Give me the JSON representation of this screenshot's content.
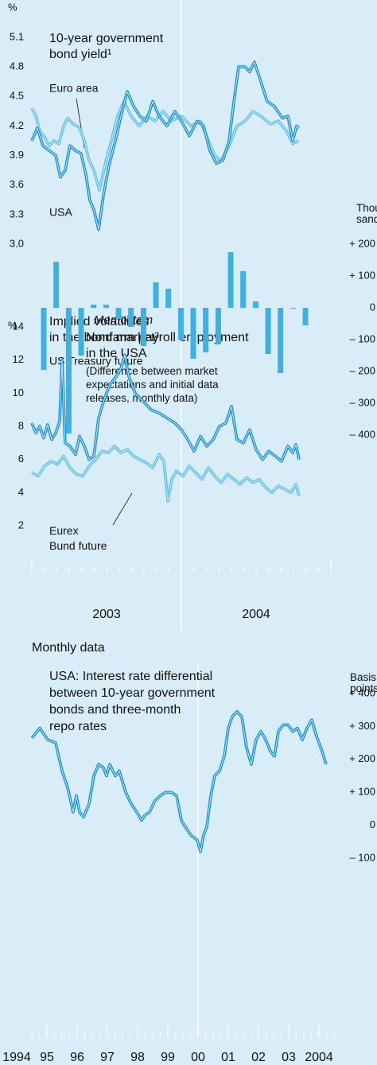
{
  "chart_data": [
    {
      "type": "line",
      "y_unit": "%",
      "title": "10-year government\nbond yield¹",
      "xlim": [
        2003,
        2005
      ],
      "ylim": [
        3,
        5.1
      ],
      "xgrid": [
        2004
      ],
      "yticks": [
        {
          "value": 3,
          "label": "3.0"
        },
        3.3,
        3.6,
        3.9,
        4.2,
        4.5,
        4.8,
        5.1
      ],
      "series": [
        {
          "name": "Euro area",
          "color": "#5fbde8",
          "x": [
            2003.0,
            2003.027,
            2003.053,
            2003.08,
            2003.117,
            2003.149,
            2003.181,
            2003.213,
            2003.239,
            2003.277,
            2003.319,
            2003.351,
            2003.383,
            2003.415,
            2003.452,
            2003.489,
            2003.532,
            2003.574,
            2003.617,
            2003.665,
            2003.718,
            2003.771,
            2003.824,
            2003.878,
            2003.931,
            2004.0,
            2004.064,
            2004.128,
            2004.181,
            2004.223,
            2004.266,
            2004.319,
            2004.372,
            2004.426,
            2004.479,
            2004.532,
            2004.596,
            2004.649,
            2004.702,
            2004.745,
            2004.782
          ],
          "values": [
            4.38,
            4.3,
            4.15,
            4.1,
            4.0,
            4.05,
            4.02,
            4.2,
            4.28,
            4.22,
            4.18,
            4.05,
            3.85,
            3.75,
            3.55,
            3.8,
            4.05,
            4.3,
            4.45,
            4.3,
            4.2,
            4.3,
            4.25,
            4.35,
            4.25,
            4.3,
            4.2,
            4.25,
            4.05,
            3.9,
            3.85,
            4.0,
            4.2,
            4.25,
            4.35,
            4.3,
            4.22,
            4.25,
            4.15,
            4.02,
            4.05
          ]
        },
        {
          "name": "USA",
          "color": "#1a8fd0",
          "x": [
            2003.0,
            2003.037,
            2003.074,
            2003.117,
            2003.16,
            2003.191,
            2003.223,
            2003.255,
            2003.293,
            2003.33,
            2003.362,
            2003.388,
            2003.415,
            2003.447,
            2003.479,
            2003.516,
            2003.559,
            2003.596,
            2003.638,
            2003.681,
            2003.723,
            2003.766,
            2003.809,
            2003.851,
            2003.904,
            2003.957,
            2004.0,
            2004.053,
            2004.106,
            2004.149,
            2004.191,
            2004.234,
            2004.277,
            2004.319,
            2004.356,
            2004.383,
            2004.426,
            2004.457,
            2004.489,
            2004.532,
            2004.574,
            2004.622,
            2004.676,
            2004.713,
            2004.745,
            2004.771,
            2004.787
          ],
          "values": [
            4.05,
            4.18,
            4.0,
            3.95,
            3.9,
            3.68,
            3.75,
            4.0,
            3.95,
            3.92,
            3.7,
            3.45,
            3.35,
            3.15,
            3.5,
            3.8,
            4.05,
            4.3,
            4.55,
            4.4,
            4.3,
            4.25,
            4.45,
            4.3,
            4.2,
            4.35,
            4.25,
            4.1,
            4.25,
            4.2,
            3.95,
            3.82,
            3.85,
            4.05,
            4.5,
            4.8,
            4.8,
            4.75,
            4.85,
            4.65,
            4.45,
            4.4,
            4.28,
            4.3,
            4.05,
            4.2,
            4.18
          ]
        }
      ]
    },
    {
      "type": "bar",
      "y_unit": "Thou-\nsands",
      "color": "#3fb0e2",
      "annotations": [
        "Memo item",
        "Nonfarm payroll employment\nin the USA",
        "(Difference between market\nexpectations and initial data\nreleases, monthly data)"
      ],
      "xlim": [
        2003,
        2005
      ],
      "ylim": [
        -400,
        200
      ],
      "xgrid": [
        2004
      ],
      "yticks": [
        {
          "value": 200,
          "label": "+ 200"
        },
        {
          "value": 100,
          "label": "+ 100"
        },
        0,
        {
          "value": -100,
          "label": "– 100"
        },
        {
          "value": -200,
          "label": "– 200"
        },
        {
          "value": -300,
          "label": "– 300"
        },
        {
          "value": -400,
          "label": "– 400"
        }
      ],
      "x": [
        2003.08,
        2003.163,
        2003.247,
        2003.33,
        2003.413,
        2003.497,
        2003.58,
        2003.663,
        2003.747,
        2003.83,
        2003.913,
        2003.997,
        2004.08,
        2004.163,
        2004.247,
        2004.33,
        2004.413,
        2004.497,
        2004.58,
        2004.663,
        2004.747,
        2004.83
      ],
      "values": [
        -195,
        145,
        -395,
        -150,
        10,
        10,
        -35,
        -60,
        -120,
        80,
        60,
        -100,
        -160,
        -140,
        -115,
        175,
        115,
        20,
        -145,
        -205,
        -3,
        -55
      ]
    },
    {
      "type": "line",
      "y_unit": "%",
      "title": "Implied volatilities\nin the bond market²",
      "xlim": [
        2003,
        2005
      ],
      "ylim": [
        2,
        14
      ],
      "xgrid": [
        2004
      ],
      "yticks": [
        2,
        4,
        6,
        8,
        10,
        12,
        14
      ],
      "xticks": [
        {
          "value": 2003.5,
          "label": "2003"
        },
        {
          "value": 2004.5,
          "label": "2004"
        }
      ],
      "series": [
        {
          "name": "US Treasury future",
          "color": "#1a8fd0",
          "x": [
            2003.0,
            2003.027,
            2003.053,
            2003.08,
            2003.106,
            2003.133,
            2003.16,
            2003.186,
            2003.202,
            2003.223,
            2003.255,
            2003.293,
            2003.319,
            2003.351,
            2003.383,
            2003.415,
            2003.447,
            2003.479,
            2003.521,
            2003.564,
            2003.596,
            2003.622,
            2003.649,
            2003.691,
            2003.745,
            2003.798,
            2003.851,
            2003.904,
            2003.957,
            2004.0,
            2004.043,
            2004.085,
            2004.128,
            2004.17,
            2004.213,
            2004.255,
            2004.298,
            2004.335,
            2004.372,
            2004.415,
            2004.457,
            2004.5,
            2004.543,
            2004.585,
            2004.628,
            2004.67,
            2004.713,
            2004.745,
            2004.766,
            2004.787
          ],
          "values": [
            8.2,
            7.6,
            8.0,
            7.3,
            8.1,
            7.2,
            7.6,
            8.3,
            12.0,
            7.0,
            6.8,
            6.3,
            7.4,
            6.8,
            6.0,
            6.2,
            8.5,
            9.5,
            10.5,
            11.0,
            11.5,
            12.3,
            11.0,
            10.0,
            9.5,
            9.0,
            8.8,
            8.5,
            8.2,
            7.8,
            7.2,
            6.5,
            7.4,
            6.8,
            7.2,
            8.0,
            8.2,
            9.2,
            7.2,
            7.0,
            7.8,
            6.6,
            6.0,
            6.5,
            6.2,
            5.9,
            6.8,
            6.4,
            6.9,
            6.0
          ]
        },
        {
          "name": "Eurex\nBund future",
          "color": "#5fbde8",
          "x": [
            2003.0,
            2003.043,
            2003.085,
            2003.128,
            2003.17,
            2003.213,
            2003.255,
            2003.298,
            2003.34,
            2003.383,
            2003.426,
            2003.468,
            2003.511,
            2003.553,
            2003.596,
            2003.638,
            2003.681,
            2003.723,
            2003.766,
            2003.809,
            2003.851,
            2003.883,
            2003.91,
            2003.936,
            2003.968,
            2004.011,
            2004.053,
            2004.096,
            2004.138,
            2004.181,
            2004.223,
            2004.266,
            2004.309,
            2004.351,
            2004.394,
            2004.436,
            2004.479,
            2004.521,
            2004.564,
            2004.606,
            2004.649,
            2004.691,
            2004.734,
            2004.766,
            2004.787
          ],
          "values": [
            5.2,
            5.0,
            5.6,
            5.9,
            5.7,
            6.2,
            5.5,
            5.1,
            5.0,
            5.6,
            6.0,
            6.5,
            6.4,
            6.8,
            6.4,
            6.6,
            6.2,
            6.0,
            5.8,
            5.5,
            6.3,
            5.9,
            3.5,
            4.8,
            5.3,
            5.0,
            5.6,
            5.2,
            4.8,
            5.5,
            5.0,
            4.6,
            5.1,
            4.8,
            4.5,
            4.9,
            4.6,
            4.8,
            4.3,
            4.0,
            4.4,
            4.2,
            4.0,
            4.5,
            3.8
          ]
        }
      ]
    },
    {
      "type": "line",
      "subtitle": "Monthly data",
      "title": "USA: Interest rate differential\nbetween 10-year government\nbonds and three-month\nrepo rates",
      "y_unit": "Basis\npoints",
      "xlim": [
        1994.5,
        2004.5
      ],
      "ylim": [
        -100,
        400
      ],
      "xgrid": [
        2000
      ],
      "yticks": [
        {
          "value": 400,
          "label": "+ 400"
        },
        {
          "value": 300,
          "label": "+ 300"
        },
        {
          "value": 200,
          "label": "+ 200"
        },
        {
          "value": 100,
          "label": "+ 100"
        },
        0,
        {
          "value": -100,
          "label": "– 100"
        }
      ],
      "xticks": [
        1994,
        {
          "value": 1995,
          "label": "95"
        },
        {
          "value": 1996,
          "label": "96"
        },
        {
          "value": 1997,
          "label": "97"
        },
        {
          "value": 1998,
          "label": "98"
        },
        {
          "value": 1999,
          "label": "99"
        },
        {
          "value": 2000,
          "label": "00"
        },
        {
          "value": 2001,
          "label": "01"
        },
        {
          "value": 2002,
          "label": "02"
        },
        {
          "value": 2003,
          "label": "03"
        },
        2004
      ],
      "series": [
        {
          "color": "#1a8fd0",
          "x": [
            1994.5,
            1994.763,
            1995.026,
            1995.289,
            1995.5,
            1995.684,
            1995.868,
            1995.974,
            1996.079,
            1996.211,
            1996.395,
            1996.553,
            1996.711,
            1996.868,
            1996.974,
            1997.079,
            1997.263,
            1997.395,
            1997.605,
            1997.789,
            1997.974,
            1998.132,
            1998.237,
            1998.395,
            1998.579,
            1998.763,
            1998.921,
            1999.105,
            1999.289,
            1999.447,
            1999.579,
            1999.763,
            1999.974,
            2000.079,
            2000.184,
            2000.289,
            2000.421,
            2000.553,
            2000.711,
            2000.868,
            2001.0,
            2001.132,
            2001.289,
            2001.447,
            2001.605,
            2001.763,
            2001.921,
            2002.079,
            2002.237,
            2002.395,
            2002.526,
            2002.658,
            2002.816,
            2002.974,
            2003.132,
            2003.289,
            2003.447,
            2003.605,
            2003.763,
            2003.921,
            2004.105,
            2004.237
          ],
          "values": [
            265,
            295,
            260,
            250,
            165,
            115,
            40,
            90,
            40,
            25,
            65,
            150,
            185,
            175,
            150,
            185,
            150,
            165,
            100,
            65,
            40,
            15,
            30,
            40,
            75,
            90,
            100,
            100,
            90,
            15,
            -5,
            -30,
            -45,
            -80,
            -30,
            -5,
            90,
            150,
            165,
            210,
            295,
            330,
            345,
            330,
            235,
            185,
            260,
            285,
            260,
            225,
            210,
            285,
            305,
            305,
            285,
            295,
            260,
            295,
            320,
            270,
            225,
            185
          ]
        }
      ]
    }
  ]
}
